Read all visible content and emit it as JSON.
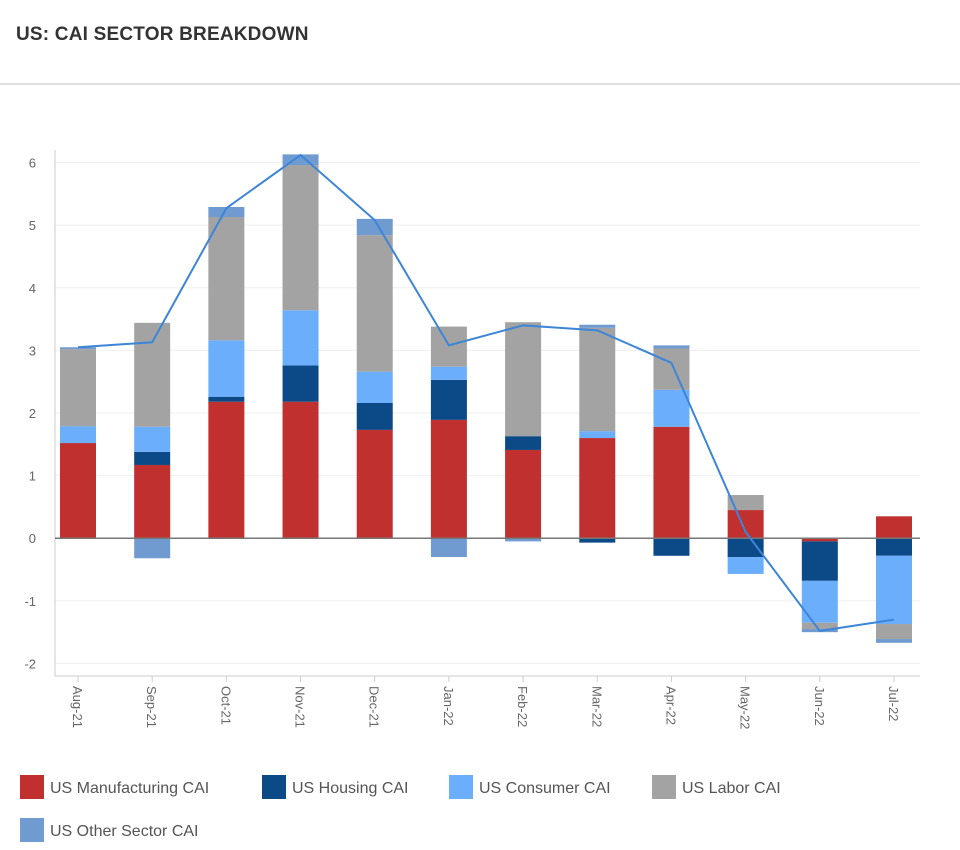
{
  "chart_data": {
    "type": "bar",
    "stacked": true,
    "title": "US: CAI SECTOR BREAKDOWN",
    "categories": [
      "Aug-21",
      "Sep-21",
      "Oct-21",
      "Nov-21",
      "Dec-21",
      "Jan-22",
      "Feb-22",
      "Mar-22",
      "Apr-22",
      "May-22",
      "Jun-22",
      "Jul-22"
    ],
    "series": [
      {
        "name": "US Manufacturing CAI",
        "color": "#c0302f",
        "values": [
          1.52,
          1.17,
          2.18,
          2.18,
          1.73,
          1.89,
          1.41,
          1.6,
          1.78,
          0.45,
          -0.05,
          0.35
        ]
      },
      {
        "name": "US Housing CAI",
        "color": "#0b4a86",
        "values": [
          0,
          0.21,
          0.08,
          0.58,
          0.43,
          0.64,
          0.22,
          -0.07,
          -0.28,
          -0.3,
          -0.63,
          -0.28
        ]
      },
      {
        "name": "US Consumer CAI",
        "color": "#6aaefc",
        "values": [
          0.27,
          0.4,
          0.9,
          0.88,
          0.5,
          0.21,
          0,
          0.11,
          0.59,
          -0.27,
          -0.67,
          -1.09
        ]
      },
      {
        "name": "US Labor CAI",
        "color": "#a3a3a3",
        "values": [
          1.23,
          1.66,
          1.97,
          2.32,
          2.18,
          0.64,
          1.82,
          1.65,
          0.66,
          0.24,
          -0.1,
          -0.24
        ]
      },
      {
        "name": "US Other Sector CAI",
        "color": "#6f9bd0",
        "values": [
          0.03,
          -0.32,
          0.16,
          0.17,
          0.26,
          -0.3,
          -0.05,
          0.05,
          0.05,
          0,
          -0.05,
          -0.06
        ]
      },
      {
        "type": "line",
        "color": "#3d85d8",
        "values": [
          3.05,
          3.13,
          5.27,
          6.12,
          5.08,
          3.08,
          3.4,
          3.32,
          2.8,
          0.1,
          -1.48,
          -1.3
        ]
      }
    ],
    "ylim": [
      -2.2,
      6.2
    ],
    "yticks": [
      -2,
      -1,
      0,
      1,
      2,
      3,
      4,
      5,
      6
    ],
    "grid": true
  }
}
